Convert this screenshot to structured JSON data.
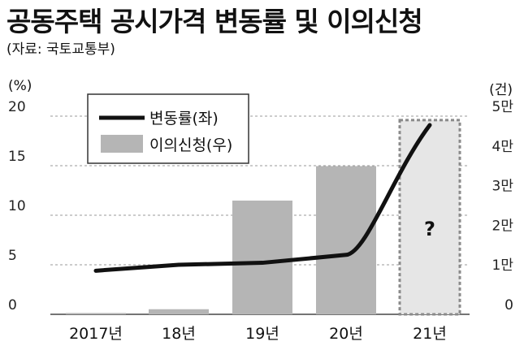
{
  "header": {
    "title": "공동주택 공시가격 변동률 및 이의신청",
    "source": "(자료: 국토교통부)"
  },
  "axes": {
    "left_unit": "(%)",
    "right_unit": "(건)"
  },
  "chart_data": {
    "type": "bar",
    "categories": [
      "2017년",
      "18년",
      "19년",
      "20년",
      "21년"
    ],
    "series": [
      {
        "name": "변동률(좌)",
        "type": "line",
        "axis": "left",
        "values": [
          4.4,
          5.0,
          5.2,
          6.0,
          19.1
        ],
        "color": "#111111"
      },
      {
        "name": "이의신청(우)",
        "type": "bar",
        "axis": "right",
        "values": [
          330,
          1290,
          28700,
          37400,
          null
        ],
        "color": "#b5b5b5"
      }
    ],
    "unknown_bar": {
      "category": "21년",
      "label": "?",
      "display_value": 49000,
      "fill": "#e6e6e6",
      "border": "#8a8a8a"
    },
    "left_axis": {
      "ylim": [
        0,
        20
      ],
      "ticks": [
        "0",
        "5",
        "10",
        "15",
        "20"
      ],
      "tick_values": [
        0,
        5,
        10,
        15,
        20
      ]
    },
    "right_axis": {
      "ylim": [
        0,
        50000
      ],
      "ticks": [
        "0",
        "1만",
        "2만",
        "3만",
        "4만",
        "5만"
      ],
      "tick_values": [
        0,
        10000,
        20000,
        30000,
        40000,
        50000
      ]
    },
    "grid": "horizontal-dashed",
    "legend": "top-left"
  }
}
